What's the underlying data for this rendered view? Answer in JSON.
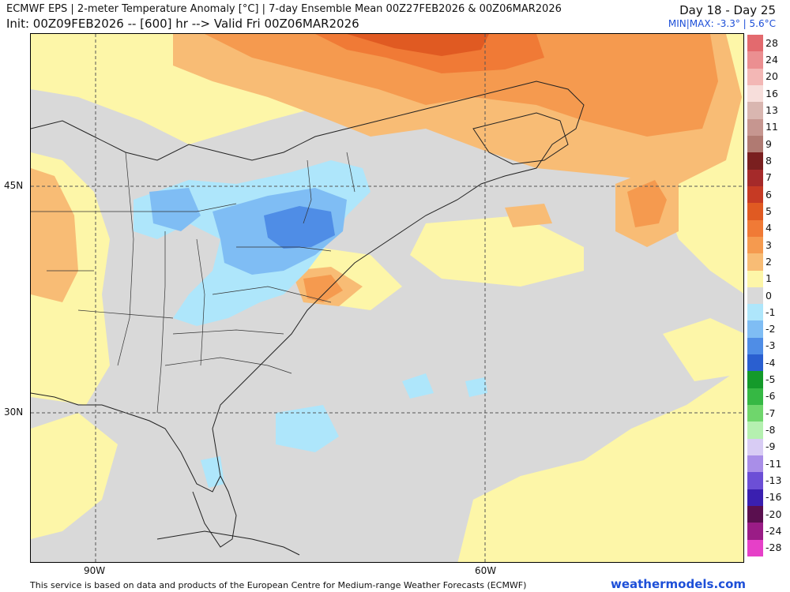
{
  "header": {
    "title_line1": "ECMWF EPS | 2-meter Temperature Anomaly [°C] | 7-day Ensemble Mean 00Z27FEB2026 & 00Z06MAR2026",
    "title_line2": "Init: 00Z09FEB2026 -- [600] hr --> Valid Fri 00Z06MAR2026",
    "day_range": "Day 18 - Day 25",
    "minmax": "MIN|MAX: -3.3° | 5.6°C"
  },
  "map": {
    "lat_labels": [
      "45N",
      "30N"
    ],
    "lon_labels": [
      "90W",
      "60W"
    ],
    "region": "Eastern North America and western Atlantic"
  },
  "colorbar": {
    "entries": [
      {
        "label": "28",
        "color": "#e36a6e"
      },
      {
        "label": "24",
        "color": "#eb8f91"
      },
      {
        "label": "20",
        "color": "#f3b7b5"
      },
      {
        "label": "16",
        "color": "#f7dedb"
      },
      {
        "label": "13",
        "color": "#d9b6b0"
      },
      {
        "label": "11",
        "color": "#c69690"
      },
      {
        "label": "9",
        "color": "#b07a72"
      },
      {
        "label": "8",
        "color": "#7a1f1f"
      },
      {
        "label": "7",
        "color": "#a52a2a"
      },
      {
        "label": "6",
        "color": "#c63a24"
      },
      {
        "label": "5",
        "color": "#e05a22"
      },
      {
        "label": "4",
        "color": "#f07a36"
      },
      {
        "label": "3",
        "color": "#f59a4f"
      },
      {
        "label": "2",
        "color": "#f8bc75"
      },
      {
        "label": "1",
        "color": "#fdf6a8"
      },
      {
        "label": "0",
        "color": "#d9d9d9"
      },
      {
        "label": "-1",
        "color": "#aee6fb"
      },
      {
        "label": "-2",
        "color": "#7fbdf4"
      },
      {
        "label": "-3",
        "color": "#4f8de6"
      },
      {
        "label": "-4",
        "color": "#2a5fd0"
      },
      {
        "label": "-5",
        "color": "#149a2a"
      },
      {
        "label": "-6",
        "color": "#36b844"
      },
      {
        "label": "-7",
        "color": "#6fd66c"
      },
      {
        "label": "-8",
        "color": "#b5f0b0"
      },
      {
        "label": "-9",
        "color": "#d8ccf4"
      },
      {
        "label": "-11",
        "color": "#a98ee8"
      },
      {
        "label": "-13",
        "color": "#6c4fd6"
      },
      {
        "label": "-16",
        "color": "#3a1fb0"
      },
      {
        "label": "-20",
        "color": "#5a0f4f"
      },
      {
        "label": "-24",
        "color": "#9a1c86"
      },
      {
        "label": "-28",
        "color": "#e640c8"
      }
    ]
  },
  "footer": {
    "attribution": "This service is based on data and products of the European Centre for Medium-range Weather Forecasts (ECMWF)",
    "brand": "weathermodels.com"
  }
}
